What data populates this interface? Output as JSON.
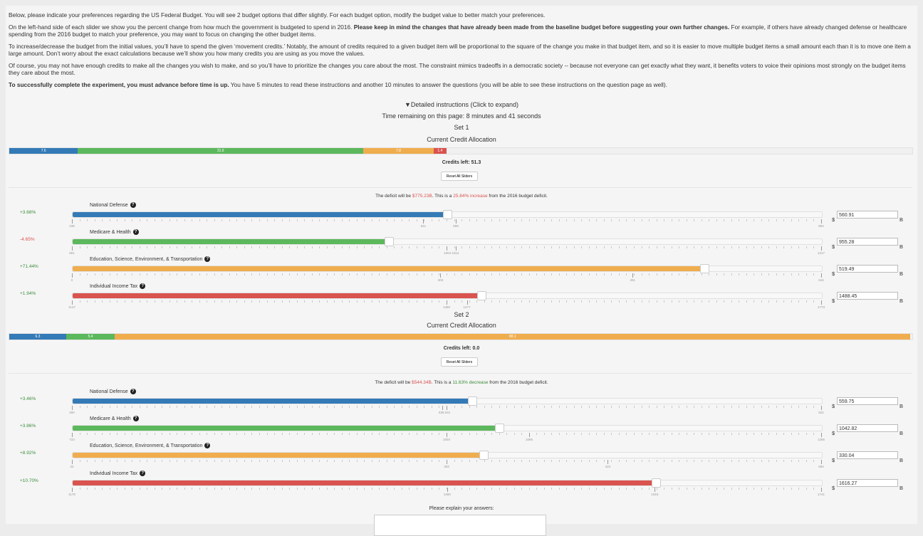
{
  "instructions": {
    "p1": "Below, please indicate your preferences regarding the US Federal Budget. You will see 2 budget options that differ slightly. For each budget option, modify the budget value to better match your preferences.",
    "p2_a": "On the left-hand side of each slider we show you the percent change from how much the government is budgeted to spend in 2016. ",
    "p2_bold": "Please keep in mind the changes that have already been made from the baseline budget before suggesting your own further changes.",
    "p2_b": " For example, if others have already changed defense or healthcare spending from the 2016 budget to match your preference, you may want to focus on changing the other budget items.",
    "p3": "To increase/decrease the budget from the initial values, you’ll have to spend the given ‘movement credits.’ Notably, the amount of credits required to a given budget item will be proportional to the square of the change you make in that budget item, and so it is easier to move multiple budget items a small amount each than it is to move one item a large amount. Don’t worry about the exact calculations because we’ll show you how many credits you are using as you move the values.",
    "p4": "Of course, you may not have enough credits to make all the changes you wish to make, and so you’ll have to prioritize the changes you care about the most. The constraint mimics tradeoffs in a democratic society -- because not everyone can get exactly what they want, it benefits voters to voice their opinions most strongly on the budget items they care about the most.",
    "p5_bold": "To successfully complete the experiment, you must advance before time is up.",
    "p5_rest": " You have 5 minutes to read these instructions and another 10 minutes to answer the questions (you will be able to see these instructions on the question page as well)."
  },
  "details_toggle": "▼Detailed instructions (Click to expand)",
  "timer": "Time remaining on this page: 8 minutes and 41 seconds",
  "colors": {
    "defense": "#337ab7",
    "health": "#5cb85c",
    "education": "#f0ad4e",
    "tax": "#d9534f"
  },
  "icon_names": {
    "help": "question-circle-icon"
  },
  "set1": {
    "title": "Set 1",
    "alloc_title": "Current Credit Allocation",
    "segments": [
      {
        "label": "7.6",
        "value": 7.6
      },
      {
        "label": "31.6",
        "value": 31.6
      },
      {
        "label": "7.8",
        "value": 7.8
      },
      {
        "label": "1.4",
        "value": 1.4
      }
    ],
    "credits_left": "Credits left: 51.3",
    "reset_label": "Reset All Sliders",
    "deficit_pre": "The deficit will be ",
    "deficit_amount": "$775.23B",
    "deficit_mid": ". This is a ",
    "deficit_change": "25.84% increase",
    "deficit_post": " from the 2016 budget deficit.",
    "items": [
      {
        "name": "National Defense",
        "pct": "+3.68%",
        "value": "560.91",
        "min": 238,
        "max": 884,
        "current": 560.91,
        "mid": [
          541,
          569
        ],
        "labels": [
          "238",
          "541",
          "569",
          "884"
        ]
      },
      {
        "name": "Medicare & Health",
        "pct": "-4.65%",
        "value": "955.28",
        "min": 691,
        "max": 1317,
        "current": 955.28,
        "mid": [
          1004,
          1012
        ],
        "labels": [
          "691",
          "1004 1012",
          "1317"
        ]
      },
      {
        "name": "Education, Science, Environment, & Transportation",
        "pct": "+71.44%",
        "value": "519.49",
        "min": 0,
        "max": 616,
        "current": 519.49,
        "mid": [
          303,
          461
        ],
        "labels": [
          "0",
          "303",
          "461",
          "616"
        ]
      },
      {
        "name": "Individual Income Tax",
        "pct": "+1.94%",
        "value": "1488.45",
        "min": 1147,
        "max": 1773,
        "current": 1488.45,
        "mid": [
          1460,
          1477
        ],
        "labels": [
          "1147",
          "1460",
          "1477",
          "1773"
        ]
      }
    ],
    "unit_prefix": "$",
    "unit_suffix": "B"
  },
  "set2": {
    "title": "Set 2",
    "alloc_title": "Current Credit Allocation",
    "segments": [
      {
        "label": "6.3",
        "value": 6.3
      },
      {
        "label": "5.4",
        "value": 5.4
      },
      {
        "label": "88.1",
        "value": 88.1
      }
    ],
    "credits_left": "Credits left: 0.0",
    "reset_label": "Reset All Sliders",
    "deficit_pre": "The deficit will be ",
    "deficit_amount": "$544.34B",
    "deficit_mid": ". This is a ",
    "deficit_change": "11.63% decrease",
    "deficit_post": " from the 2016 budget deficit.",
    "items": [
      {
        "name": "National Defense",
        "pct": "+3.46%",
        "value": "559.75",
        "min": 260,
        "max": 822,
        "current": 559.75,
        "mid": [
          538,
          541
        ],
        "labels": [
          "260",
          "538 541",
          "822"
        ]
      },
      {
        "name": "Medicare & Health",
        "pct": "+3.86%",
        "value": "1042.82",
        "min": 723,
        "max": 1285,
        "current": 1042.82,
        "mid": [
          1004,
          1066
        ],
        "labels": [
          "723",
          "1004",
          "1066",
          "1285"
        ]
      },
      {
        "name": "Education, Science, Environment, & Transportation",
        "pct": "+8.92%",
        "value": "330.04",
        "min": 22,
        "max": 584,
        "current": 330.04,
        "mid": [
          303,
          424
        ],
        "labels": [
          "22",
          "303",
          "424",
          "584"
        ]
      },
      {
        "name": "Individual Income Tax",
        "pct": "+10.70%",
        "value": "1616.27",
        "min": 1178,
        "max": 1741,
        "current": 1616.27,
        "mid": [
          1460,
          1616
        ],
        "labels": [
          "1178",
          "1460",
          "1616",
          "1741"
        ]
      }
    ],
    "unit_prefix": "$",
    "unit_suffix": "B"
  },
  "explain_label": "Please explain your answers:"
}
